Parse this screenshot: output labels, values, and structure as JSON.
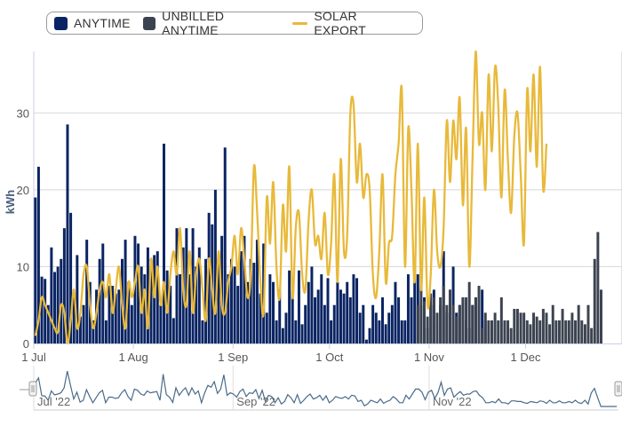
{
  "legend": {
    "anytime": "ANYTIME",
    "unbilled": "UNBILLED ANYTIME",
    "solar": "SOLAR EXPORT"
  },
  "colors": {
    "anytime": "#0a2463",
    "unbilled": "#3c4350",
    "solar": "#e8b93a",
    "navigator_line": "#4a6b8a"
  },
  "chart_data": {
    "type": "bar",
    "ylabel": "kWh",
    "ylim": [
      0,
      38
    ],
    "y_ticks": [
      "0",
      "10",
      "20",
      "30"
    ],
    "x_tick_labels": [
      "1 Jul",
      "1 Aug",
      "1 Sep",
      "1 Oct",
      "1 Nov",
      "1 Dec"
    ],
    "x_tick_day_index": [
      0,
      31,
      62,
      92,
      123,
      153
    ],
    "start_date": "2022-07-01",
    "grid": true,
    "legend_position": "top-left",
    "series": [
      {
        "name": "ANYTIME",
        "type": "bar",
        "start_index": 0,
        "values": [
          19,
          23,
          8.7,
          8.4,
          5,
          12.5,
          9.3,
          10,
          11,
          15,
          28.5,
          17,
          6,
          11.5,
          3.5,
          5,
          13.5,
          8,
          3,
          7,
          11,
          13,
          3,
          7.5,
          7.5,
          6.5,
          7,
          11,
          13.5,
          8,
          5,
          14,
          13,
          10,
          9,
          12.5,
          11,
          11.5,
          12,
          5,
          26,
          9.5,
          7.5,
          3.3,
          15,
          9,
          12.5,
          15,
          9,
          15,
          10,
          12.5,
          3,
          11,
          17,
          15.5,
          20,
          10.5,
          14,
          25.5,
          9,
          11,
          10,
          7.5,
          12,
          14,
          8,
          11,
          10.5,
          13.5,
          6.5,
          13,
          4,
          9,
          8,
          3,
          7,
          2,
          4,
          9.5,
          7,
          3,
          9.5,
          2.5,
          5,
          8,
          10,
          6,
          7,
          9,
          5,
          8.5,
          3,
          5,
          8,
          7,
          6.5,
          8,
          6,
          9,
          8.5,
          4,
          5,
          0.5,
          2,
          5,
          4,
          3,
          6,
          2.5,
          4,
          5,
          8,
          6,
          3,
          3,
          9,
          6,
          10,
          9,
          5,
          6,
          2,
          5,
          7,
          2.5,
          5,
          12,
          4,
          7,
          10,
          4,
          5,
          6,
          3,
          2,
          5,
          6,
          5,
          7,
          3
        ]
      },
      {
        "name": "UNBILLED ANYTIME",
        "type": "bar",
        "start_index": 119,
        "values": [
          5,
          9,
          5.5,
          3.5,
          6.5,
          6,
          4,
          6,
          7.5,
          5,
          7,
          5,
          3.5,
          5,
          6,
          6,
          8,
          5,
          6,
          7.5,
          2,
          4,
          3,
          3,
          4,
          3,
          6,
          3,
          3,
          2,
          4.5,
          4.5,
          4,
          4,
          3,
          2.5,
          4,
          3.5,
          3,
          4.5,
          4,
          2.5,
          5,
          3,
          3,
          4.5,
          3,
          3,
          4,
          3,
          5,
          3,
          2.5,
          5,
          2,
          11,
          14.5,
          7
        ]
      },
      {
        "name": "SOLAR EXPORT",
        "type": "line",
        "start_index": 0,
        "values": [
          1,
          3,
          6,
          5,
          4,
          3,
          2,
          1.5,
          5,
          4,
          0,
          3,
          7,
          2,
          4,
          9,
          10,
          5,
          2,
          4,
          7,
          8,
          6,
          9,
          4,
          7,
          10,
          5,
          2,
          8,
          6,
          8,
          10,
          4,
          7,
          2,
          11,
          6,
          10,
          5,
          8,
          4,
          9,
          12,
          9,
          15,
          7,
          5,
          12,
          4,
          9,
          11,
          7,
          3,
          11,
          7,
          4,
          12,
          5,
          4,
          8,
          10,
          14,
          9,
          15,
          11,
          6,
          9,
          23,
          17,
          8,
          4,
          19,
          13,
          21,
          10,
          6,
          18,
          12,
          23,
          6,
          15,
          17,
          9,
          7,
          16,
          20,
          13,
          14,
          11,
          17,
          9,
          13,
          22,
          8,
          24,
          12,
          14,
          30,
          31,
          21,
          26,
          19,
          22,
          20,
          9,
          6,
          12,
          22,
          8,
          13,
          14,
          22,
          26,
          33,
          10,
          28,
          20,
          8,
          26,
          7,
          19,
          5,
          9,
          20,
          12,
          10,
          15,
          29,
          21,
          29,
          24,
          32,
          18,
          28,
          10,
          24,
          38,
          26,
          30,
          20,
          35,
          25,
          36,
          31,
          19,
          33,
          24,
          17,
          27,
          30,
          22,
          13,
          33,
          25,
          35,
          23,
          36,
          20,
          26
        ]
      }
    ]
  },
  "navigator": {
    "labels": [
      "Jul '22",
      "Sep '22",
      "Nov '22"
    ],
    "label_day_index": [
      0,
      62,
      123
    ]
  }
}
